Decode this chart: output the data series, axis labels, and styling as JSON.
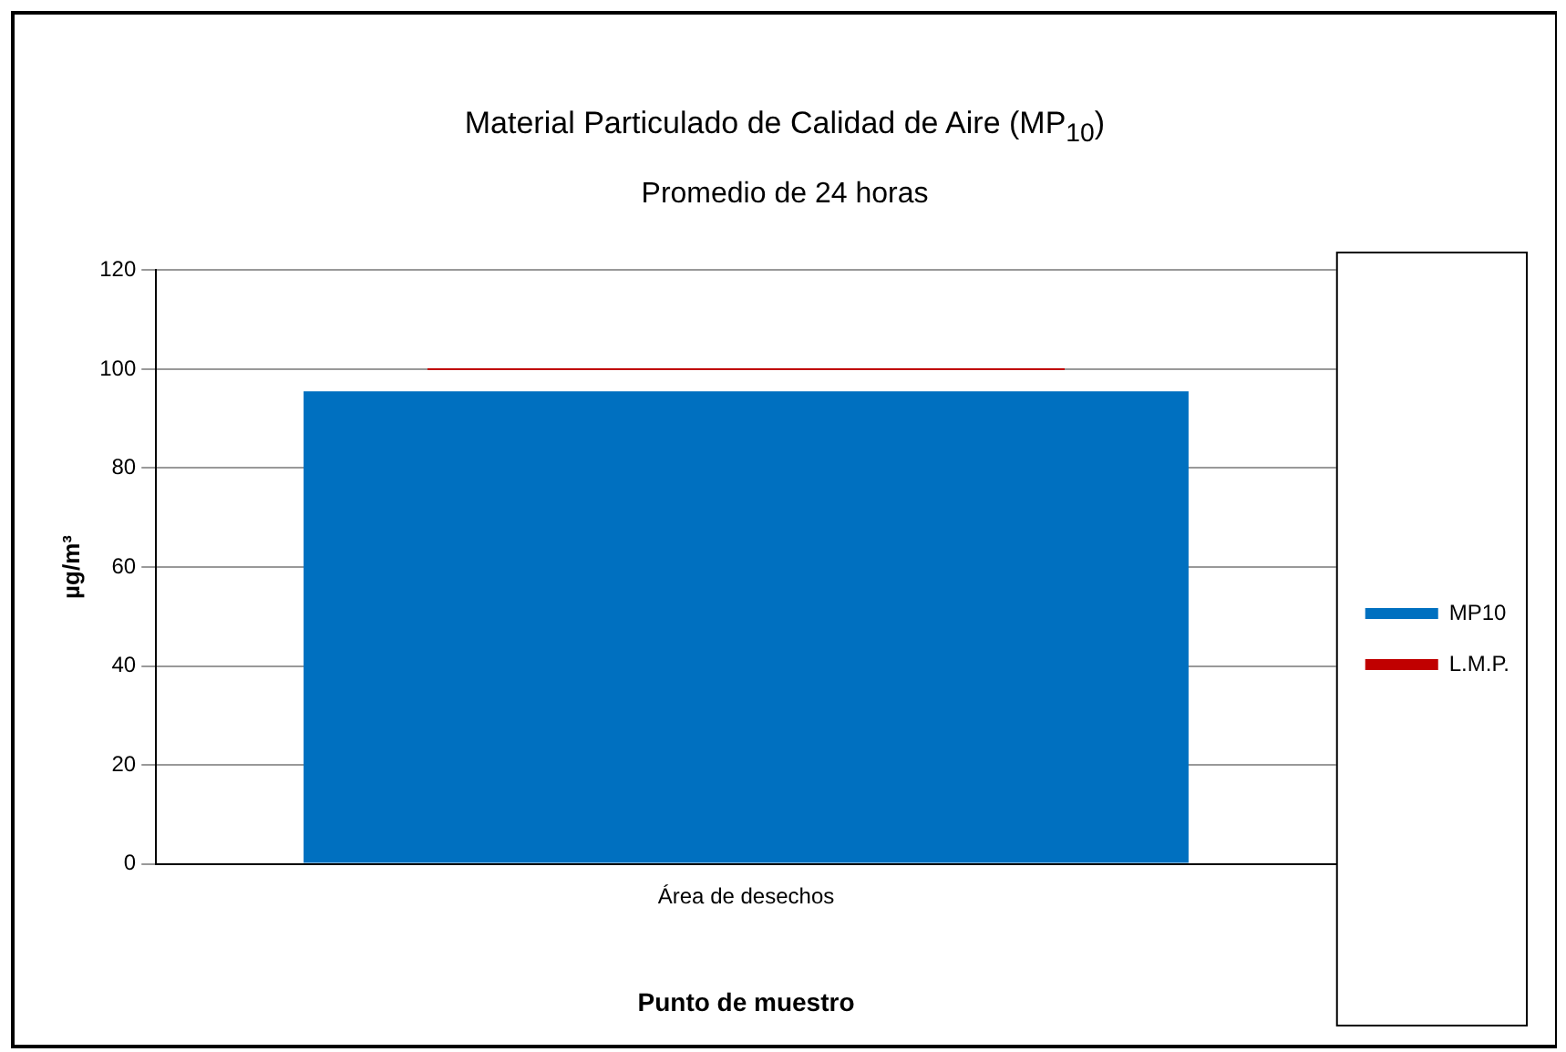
{
  "chart_data": {
    "type": "bar",
    "title": "Material Particulado de Calidad de Aire (MP$_{10}$)",
    "subtitle": "Promedio de 24 horas",
    "xlabel": "Punto de muestro",
    "ylabel": "µg/m³",
    "categories": [
      "Área de desechos"
    ],
    "series": [
      {
        "name": "MP10",
        "color": "#0070c0",
        "values": [
          95.5
        ]
      }
    ],
    "ref_lines": [
      {
        "axis": "y",
        "value": 100,
        "label": "L.M.P.",
        "color": "#c00000"
      }
    ],
    "ylim": [
      0,
      120
    ],
    "yticks": [
      0,
      20,
      40,
      60,
      80,
      100,
      120
    ],
    "grid": "y",
    "legend": "right"
  }
}
